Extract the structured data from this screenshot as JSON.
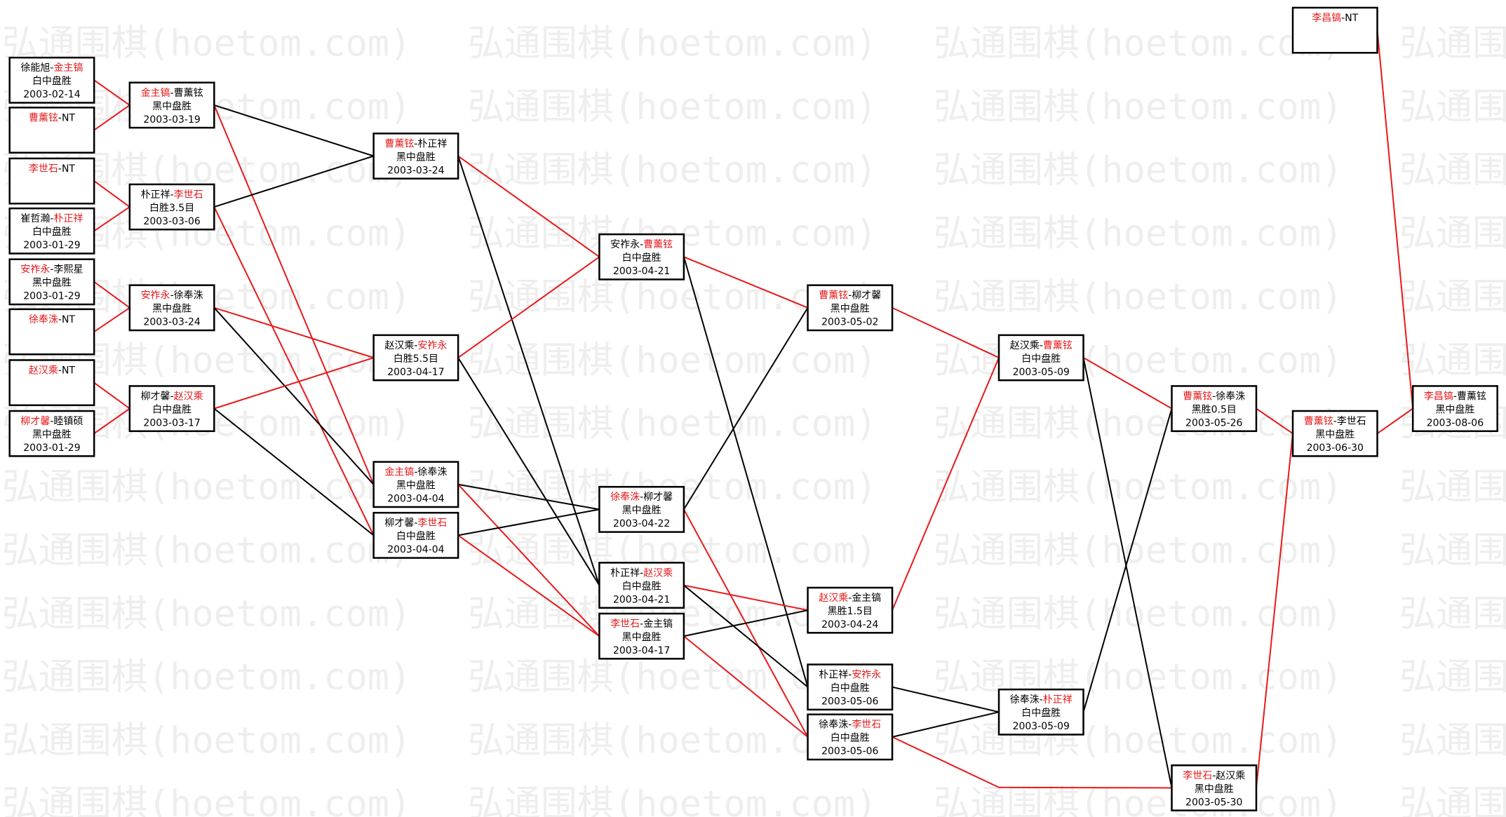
{
  "watermark": "弘通围棋(hoetom.com)",
  "separator": "-",
  "matches": [
    {
      "players": [
        "徐能旭",
        "金主镐"
      ],
      "winner": 1,
      "result": "白中盘胜",
      "date": "2003-02-14"
    },
    {
      "players": [
        "曹薰铉",
        "NT"
      ],
      "winner": 0
    },
    {
      "players": [
        "李世石",
        "NT"
      ],
      "winner": 0
    },
    {
      "players": [
        "崔哲瀚",
        "朴正祥"
      ],
      "winner": 1,
      "result": "白中盘胜",
      "date": "2003-01-29"
    },
    {
      "players": [
        "安祚永",
        "李熙星"
      ],
      "winner": 0,
      "result": "黑中盘胜",
      "date": "2003-01-29"
    },
    {
      "players": [
        "徐奉洙",
        "NT"
      ],
      "winner": 0
    },
    {
      "players": [
        "赵汉乘",
        "NT"
      ],
      "winner": 0
    },
    {
      "players": [
        "柳才馨",
        "睦镇硕"
      ],
      "winner": 0,
      "result": "黑中盘胜",
      "date": "2003-01-29"
    },
    {
      "players": [
        "金主镐",
        "曹薰铉"
      ],
      "winner": 0,
      "result": "黑中盘胜",
      "date": "2003-03-19"
    },
    {
      "players": [
        "朴正祥",
        "李世石"
      ],
      "winner": 1,
      "result": "白胜3.5目",
      "date": "2003-03-06"
    },
    {
      "players": [
        "安祚永",
        "徐奉洙"
      ],
      "winner": 0,
      "result": "黑中盘胜",
      "date": "2003-03-24"
    },
    {
      "players": [
        "柳才馨",
        "赵汉乘"
      ],
      "winner": 1,
      "result": "白中盘胜",
      "date": "2003-03-17"
    },
    {
      "players": [
        "曹薰铉",
        "朴正祥"
      ],
      "winner": 0,
      "result": "黑中盘胜",
      "date": "2003-03-24"
    },
    {
      "players": [
        "赵汉乘",
        "安祚永"
      ],
      "winner": 1,
      "result": "白胜5.5目",
      "date": "2003-04-17"
    },
    {
      "players": [
        "金主镐",
        "徐奉洙"
      ],
      "winner": 0,
      "result": "黑中盘胜",
      "date": "2003-04-04"
    },
    {
      "players": [
        "柳才馨",
        "李世石"
      ],
      "winner": 1,
      "result": "白中盘胜",
      "date": "2003-04-04"
    },
    {
      "players": [
        "安祚永",
        "曹薰铉"
      ],
      "winner": 1,
      "result": "白中盘胜",
      "date": "2003-04-21"
    },
    {
      "players": [
        "徐奉洙",
        "柳才馨"
      ],
      "winner": 0,
      "result": "黑中盘胜",
      "date": "2003-04-22"
    },
    {
      "players": [
        "朴正祥",
        "赵汉乘"
      ],
      "winner": 1,
      "result": "白中盘胜",
      "date": "2003-04-21"
    },
    {
      "players": [
        "李世石",
        "金主镐"
      ],
      "winner": 0,
      "result": "黑中盘胜",
      "date": "2003-04-17"
    },
    {
      "players": [
        "曹薰铉",
        "柳才馨"
      ],
      "winner": 0,
      "result": "黑中盘胜",
      "date": "2003-05-02"
    },
    {
      "players": [
        "赵汉乘",
        "金主镐"
      ],
      "winner": 0,
      "result": "黑胜1.5目",
      "date": "2003-04-24"
    },
    {
      "players": [
        "朴正祥",
        "安祚永"
      ],
      "winner": 1,
      "result": "白中盘胜",
      "date": "2003-05-06"
    },
    {
      "players": [
        "徐奉洙",
        "李世石"
      ],
      "winner": 1,
      "result": "白中盘胜",
      "date": "2003-05-06"
    },
    {
      "players": [
        "赵汉乘",
        "曹薰铉"
      ],
      "winner": 1,
      "result": "白中盘胜",
      "date": "2003-05-09"
    },
    {
      "players": [
        "徐奉洙",
        "朴正祥"
      ],
      "winner": 1,
      "result": "白中盘胜",
      "date": "2003-05-09"
    },
    {
      "players": [
        "曹薰铉",
        "徐奉洙"
      ],
      "winner": 0,
      "result": "黑胜0.5目",
      "date": "2003-05-26"
    },
    {
      "players": [
        "李世石",
        "赵汉乘"
      ],
      "winner": 0,
      "result": "黑中盘胜",
      "date": "2003-05-30"
    },
    {
      "players": [
        "曹薰铉",
        "李世石"
      ],
      "winner": 0,
      "result": "黑中盘胜",
      "date": "2003-06-30"
    },
    {
      "players": [
        "李昌镐",
        "NT"
      ],
      "winner": 0
    },
    {
      "players": [
        "李昌镐",
        "曹薰铉"
      ],
      "winner": 0,
      "result": "黑中盘胜",
      "date": "2003-08-06"
    }
  ]
}
